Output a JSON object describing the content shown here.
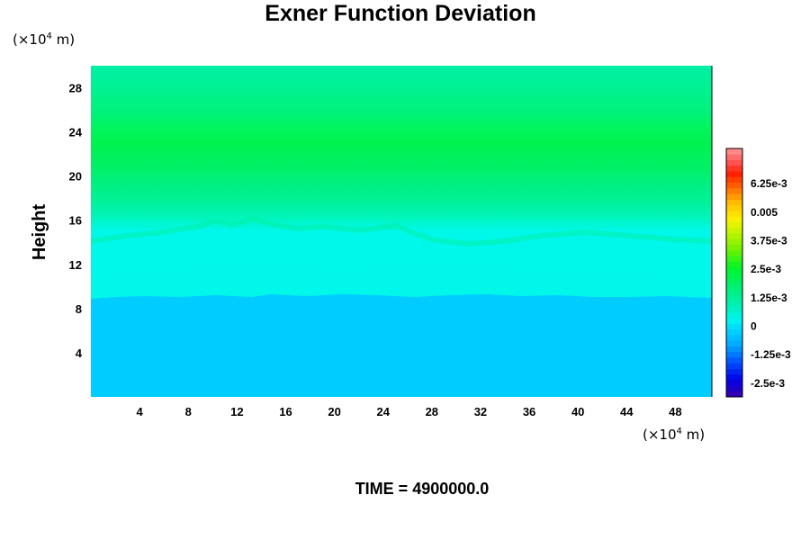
{
  "chart_data": {
    "type": "heatmap",
    "title": "Exner Function Deviation",
    "ylabel": "Height",
    "x_unit_prefix": "(×10",
    "x_unit_exp": "4",
    "x_unit_suffix": " m)",
    "y_unit_prefix": "(×10",
    "y_unit_exp": "4",
    "y_unit_suffix": " m)",
    "xlim": [
      0,
      51
    ],
    "ylim": [
      0,
      30
    ],
    "x_ticks": [
      4,
      8,
      12,
      16,
      20,
      24,
      28,
      32,
      36,
      40,
      44,
      48
    ],
    "y_ticks": [
      4,
      8,
      12,
      16,
      20,
      24,
      28
    ],
    "value_range": [
      -0.0031,
      0.0078
    ],
    "colorbar_labels": [
      {
        "value": 0.00625,
        "text": "6.25e-3"
      },
      {
        "value": 0.005,
        "text": "0.005"
      },
      {
        "value": 0.00375,
        "text": "3.75e-3"
      },
      {
        "value": 0.0025,
        "text": "2.5e-3"
      },
      {
        "value": 0.00125,
        "text": "1.25e-3"
      },
      {
        "value": 0,
        "text": "0"
      },
      {
        "value": -0.00125,
        "text": "-1.25e-3"
      },
      {
        "value": -0.0025,
        "text": "-2.5e-3"
      }
    ],
    "vertical_profile": {
      "height": [
        0,
        8.5,
        9.2,
        10.5,
        12,
        14,
        16,
        18,
        20,
        21.5,
        23,
        25,
        27,
        29,
        30
      ],
      "value": [
        -0.0004,
        -0.0004,
        0.0,
        0.0003,
        0.0009,
        0.0014,
        0.0019,
        0.0024,
        0.0027,
        0.0026,
        0.0022,
        0.0016,
        0.0011,
        0.0008,
        0.0007
      ]
    }
  },
  "time_label": "TIME = 4900000.0",
  "colors": {
    "bottom_layer": "#00ccff",
    "background": "#ffffff"
  }
}
